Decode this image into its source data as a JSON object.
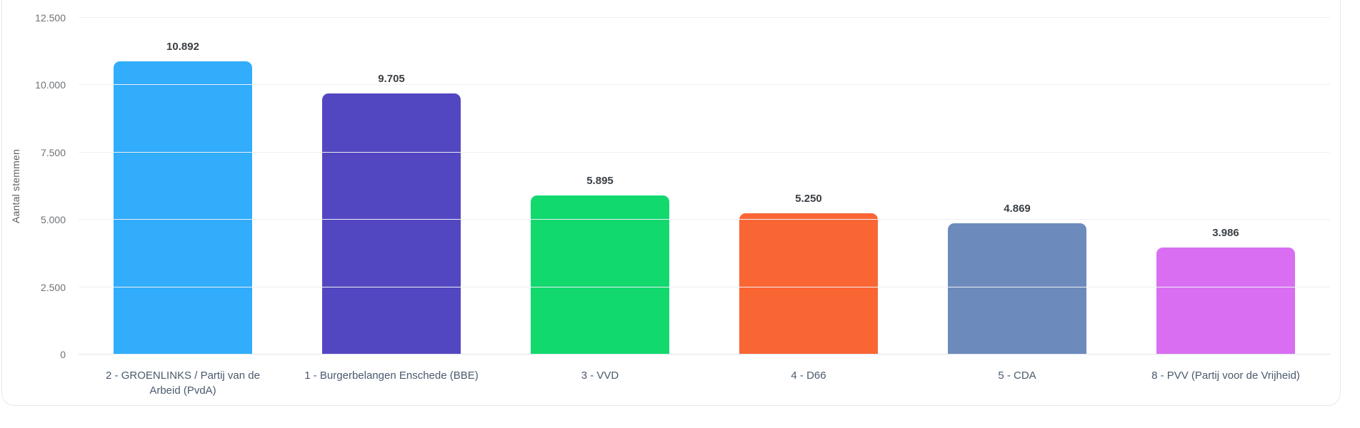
{
  "chart_data": {
    "type": "bar",
    "title": "",
    "xlabel": "",
    "ylabel": "Aantal stemmen",
    "ylim": [
      0,
      12500
    ],
    "grid": "horizontal",
    "legend": "none",
    "categories": [
      "2 - GROENLINKS / Partij van de Arbeid (PvdA)",
      "1 - Burgerbelangen Enschede (BBE)",
      "3 - VVD",
      "4 - D66",
      "5 - CDA",
      "8 - PVV (Partij voor de Vrijheid)"
    ],
    "values": [
      10892,
      9705,
      5895,
      5250,
      4869,
      3986
    ],
    "value_labels": [
      "10.892",
      "9.705",
      "5.895",
      "5.250",
      "4.869",
      "3.986"
    ],
    "bar_colors": [
      "#31adfb",
      "#5347c1",
      "#11d96e",
      "#fa6534",
      "#6d8abc",
      "#d96ef2"
    ],
    "y_ticks": [
      {
        "label": "0",
        "value": 0
      },
      {
        "label": "2.500",
        "value": 2500
      },
      {
        "label": "5.000",
        "value": 5000
      },
      {
        "label": "7.500",
        "value": 7500
      },
      {
        "label": "10.000",
        "value": 10000
      },
      {
        "label": "12.500",
        "value": 12500
      }
    ]
  }
}
